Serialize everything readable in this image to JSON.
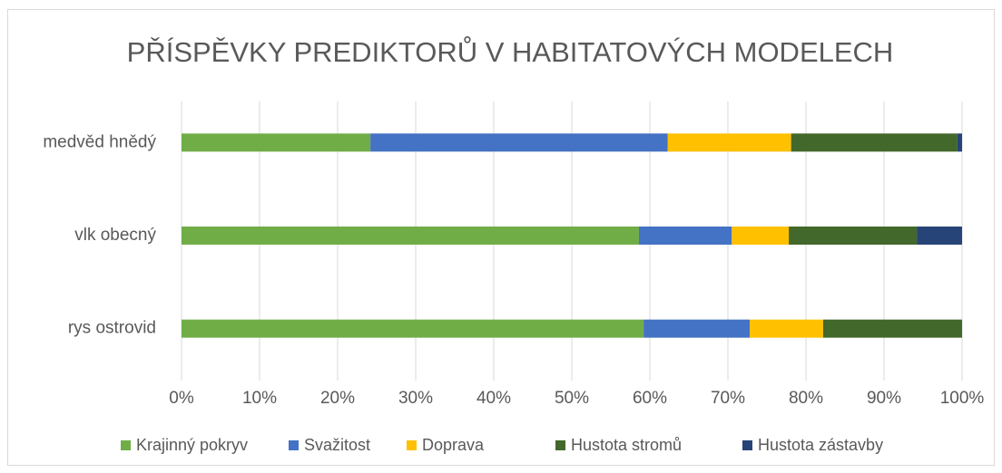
{
  "chart_data": {
    "type": "stacked_bar_horizontal",
    "title": "PŘÍSPĚVKY PREDIKTORŮ V HABITATOVÝCH MODELECH",
    "categories": [
      "medvěd hnědý",
      "vlk obecný",
      "rys ostrovid"
    ],
    "series": [
      {
        "name": "Krajinný pokryv",
        "color": "#70ad47",
        "values": [
          24.2,
          58.6,
          59.2
        ]
      },
      {
        "name": "Svažitost",
        "color": "#4472c4",
        "values": [
          38.1,
          11.9,
          13.6
        ]
      },
      {
        "name": "Doprava",
        "color": "#ffc000",
        "values": [
          15.8,
          7.3,
          9.4
        ]
      },
      {
        "name": "Hustota stromů",
        "color": "#43682b",
        "values": [
          21.3,
          16.4,
          17.8
        ]
      },
      {
        "name": "Hustota zástavby",
        "color": "#264478",
        "values": [
          0.6,
          5.8,
          0
        ]
      }
    ],
    "xlim": [
      0,
      100
    ],
    "xticks": [
      {
        "value": 0,
        "label": "0%"
      },
      {
        "value": 10,
        "label": "10%"
      },
      {
        "value": 20,
        "label": "20%"
      },
      {
        "value": 30,
        "label": "30%"
      },
      {
        "value": 40,
        "label": "40%"
      },
      {
        "value": 50,
        "label": "50%"
      },
      {
        "value": 60,
        "label": "60%"
      },
      {
        "value": 70,
        "label": "70%"
      },
      {
        "value": 80,
        "label": "80%"
      },
      {
        "value": 90,
        "label": "90%"
      },
      {
        "value": 100,
        "label": "100%"
      }
    ],
    "grid": true,
    "legend": "bottom"
  }
}
